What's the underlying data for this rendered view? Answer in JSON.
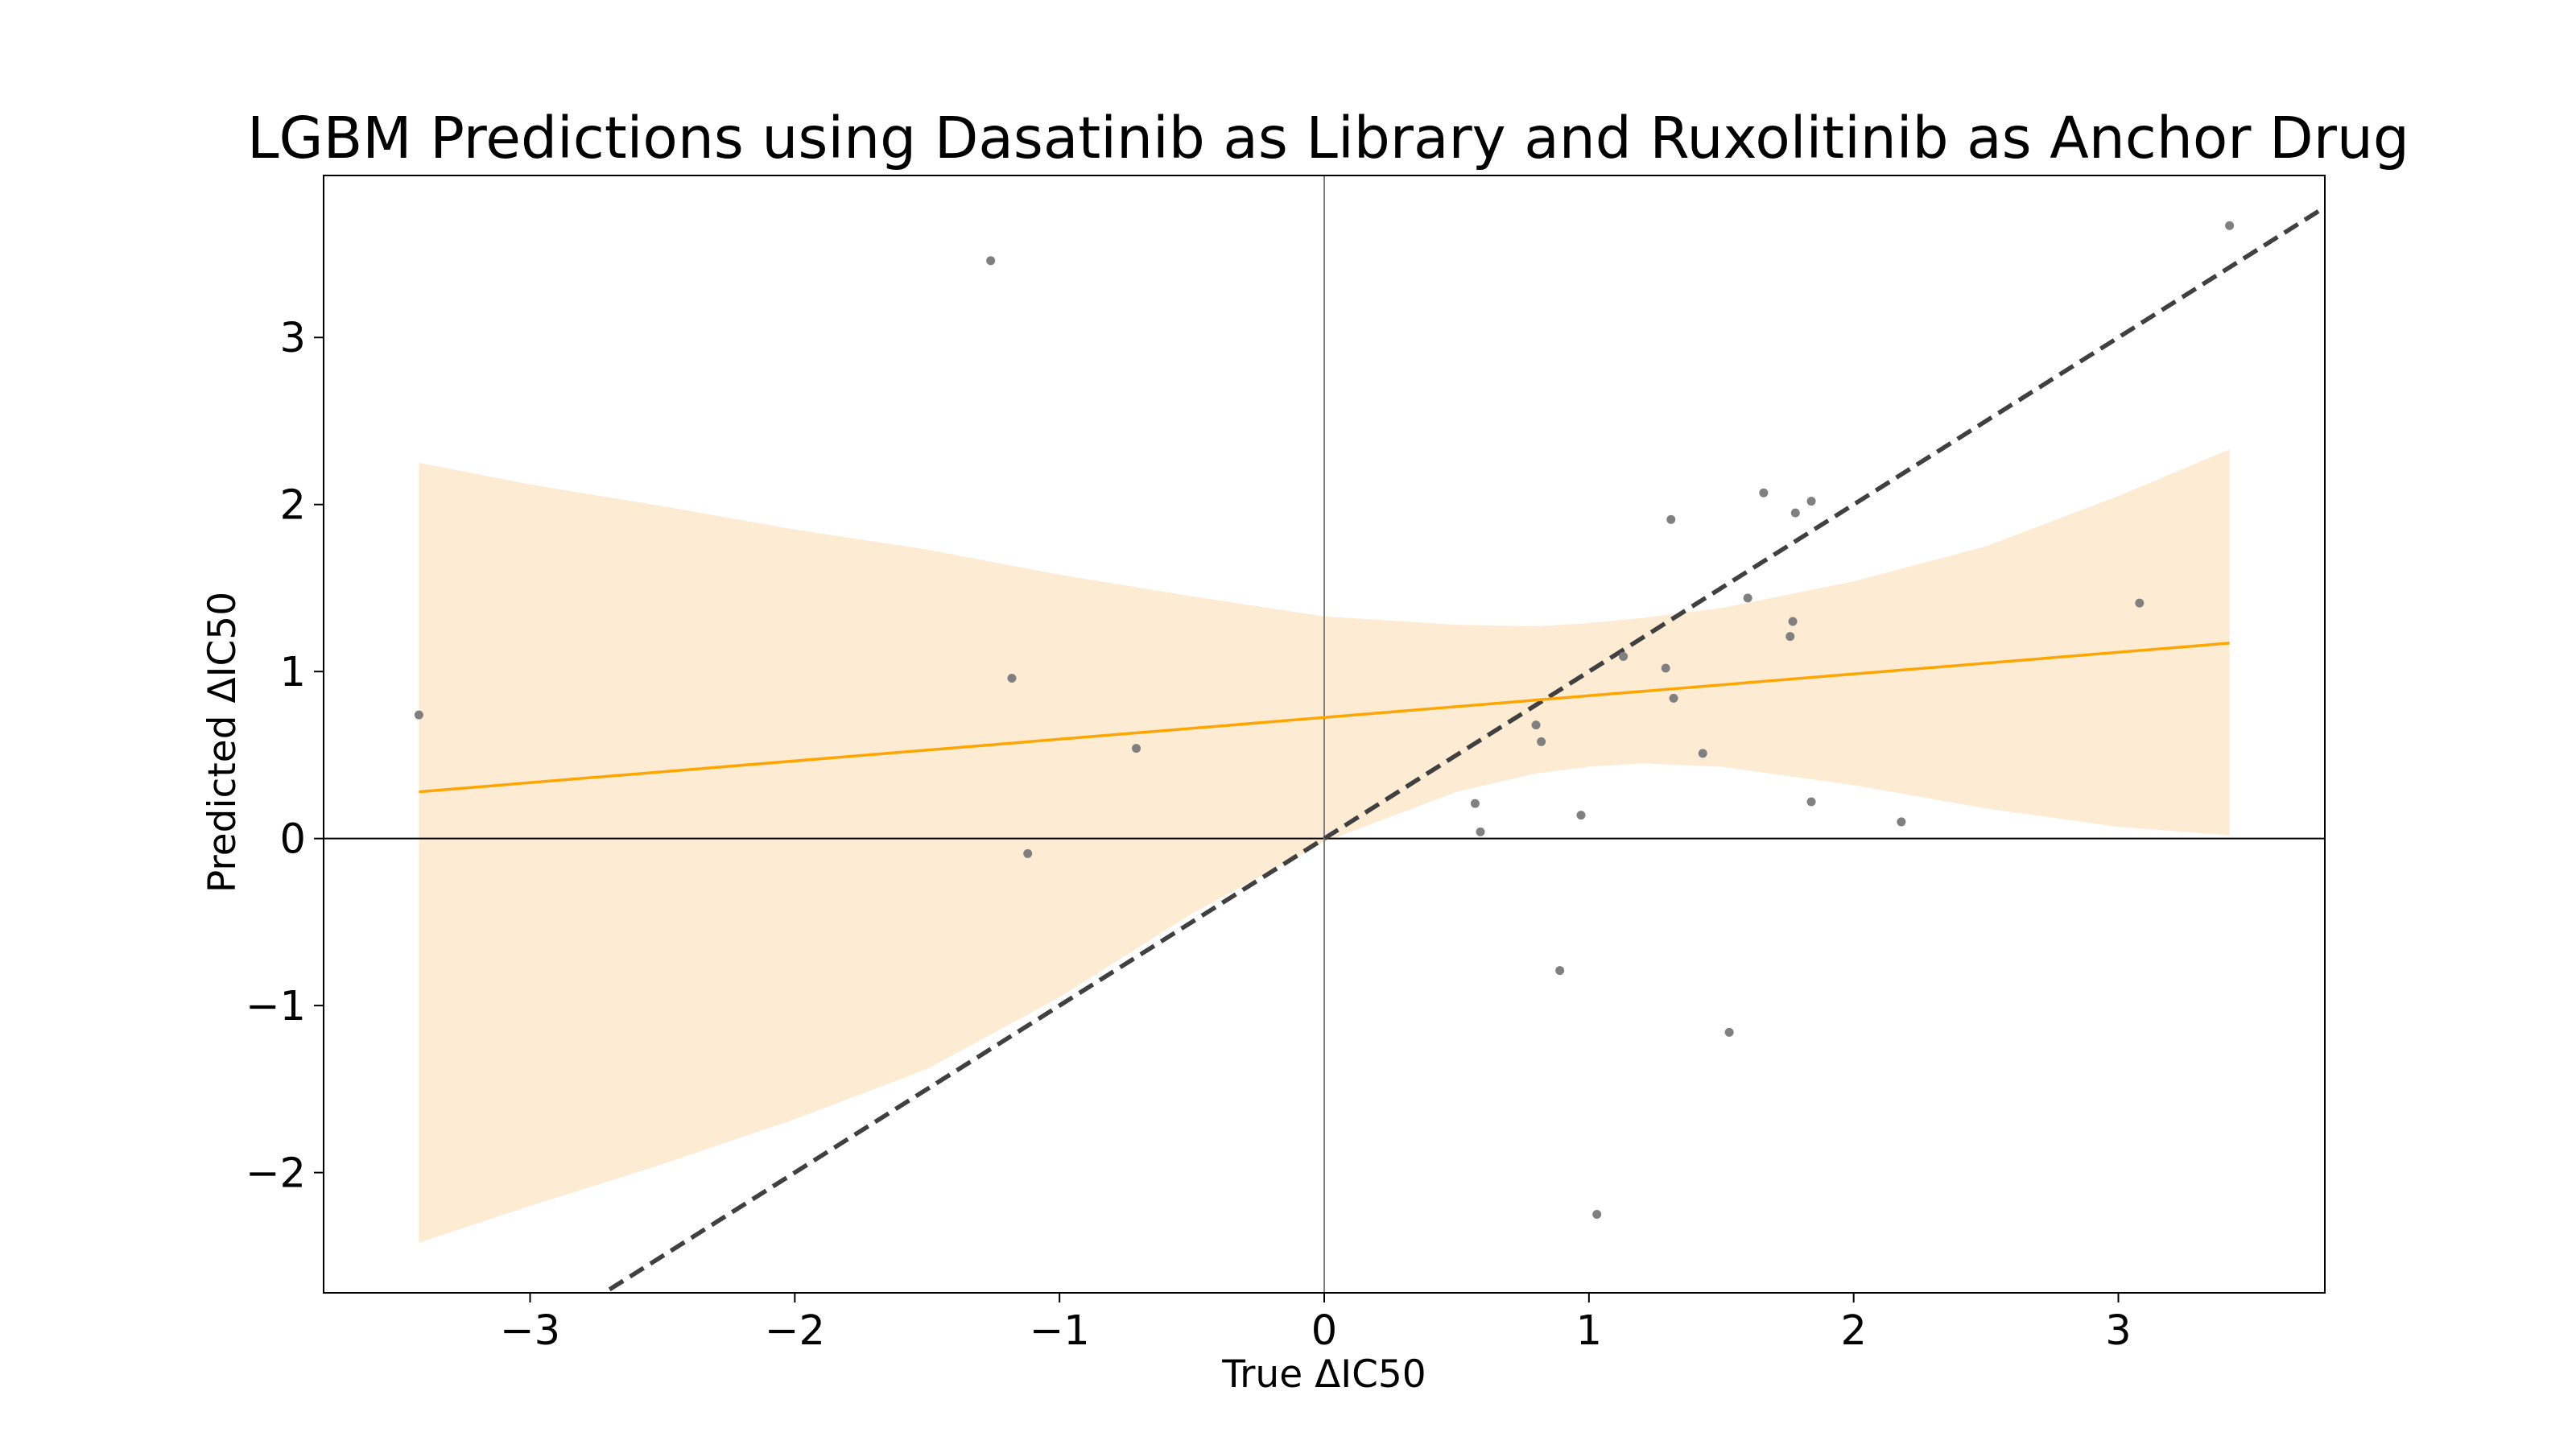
{
  "chart_data": {
    "type": "scatter",
    "title": "LGBM Predictions using Dasatinib as Library and Ruxolitinib as Anchor Drug",
    "xlabel": "True ΔIC50",
    "ylabel": "Predicted ΔIC50",
    "xlim": [
      -3.78,
      3.78
    ],
    "ylim": [
      -2.72,
      3.97
    ],
    "x_ticks": [
      -3,
      -2,
      -1,
      0,
      1,
      2,
      3
    ],
    "y_ticks": [
      -2,
      -1,
      0,
      1,
      2,
      3
    ],
    "x_tick_labels": [
      "−3",
      "−2",
      "−1",
      "0",
      "1",
      "2",
      "3"
    ],
    "y_tick_labels": [
      "−2",
      "−1",
      "0",
      "1",
      "2",
      "3"
    ],
    "grid": false,
    "reference_lines": {
      "x_zero": true,
      "y_zero": true,
      "identity_line": "dashed"
    },
    "points": [
      {
        "x": -3.42,
        "y": 0.74
      },
      {
        "x": -1.26,
        "y": 3.46
      },
      {
        "x": -1.18,
        "y": 0.96
      },
      {
        "x": -1.12,
        "y": -0.09
      },
      {
        "x": -0.71,
        "y": 0.54
      },
      {
        "x": 0.57,
        "y": 0.21
      },
      {
        "x": 0.59,
        "y": 0.04
      },
      {
        "x": 0.8,
        "y": 0.68
      },
      {
        "x": 0.82,
        "y": 0.58
      },
      {
        "x": 0.89,
        "y": -0.79
      },
      {
        "x": 0.97,
        "y": 0.14
      },
      {
        "x": 1.03,
        "y": -2.25
      },
      {
        "x": 1.13,
        "y": 1.09
      },
      {
        "x": 1.29,
        "y": 1.02
      },
      {
        "x": 1.31,
        "y": 1.91
      },
      {
        "x": 1.32,
        "y": 0.84
      },
      {
        "x": 1.43,
        "y": 0.51
      },
      {
        "x": 1.53,
        "y": -1.16
      },
      {
        "x": 1.6,
        "y": 1.44
      },
      {
        "x": 1.66,
        "y": 2.07
      },
      {
        "x": 1.76,
        "y": 1.21
      },
      {
        "x": 1.77,
        "y": 1.3
      },
      {
        "x": 1.78,
        "y": 1.95
      },
      {
        "x": 1.84,
        "y": 2.02
      },
      {
        "x": 1.84,
        "y": 0.22
      },
      {
        "x": 2.18,
        "y": 0.1
      },
      {
        "x": 3.08,
        "y": 1.41
      },
      {
        "x": 3.42,
        "y": 3.67
      }
    ],
    "regression": {
      "x_range": [
        -3.42,
        3.42
      ],
      "y_start": 0.28,
      "y_end": 1.17
    },
    "confidence_band": {
      "x": [
        -3.42,
        -3.0,
        -2.5,
        -2.0,
        -1.5,
        -1.0,
        -0.5,
        0.0,
        0.5,
        0.8,
        1.0,
        1.2,
        1.5,
        2.0,
        2.5,
        3.0,
        3.42
      ],
      "upper": [
        2.25,
        2.12,
        1.99,
        1.85,
        1.73,
        1.58,
        1.45,
        1.33,
        1.28,
        1.27,
        1.29,
        1.32,
        1.38,
        1.54,
        1.75,
        2.05,
        2.33
      ],
      "lower": [
        -2.42,
        -2.2,
        -1.95,
        -1.68,
        -1.38,
        -0.95,
        -0.45,
        -0.02,
        0.28,
        0.39,
        0.43,
        0.45,
        0.43,
        0.32,
        0.18,
        0.07,
        0.02
      ]
    },
    "colors": {
      "points": "#808080",
      "regression": "#ffa500",
      "band": "#fdebd3",
      "identity": "#404040",
      "axes": "#000000"
    }
  }
}
